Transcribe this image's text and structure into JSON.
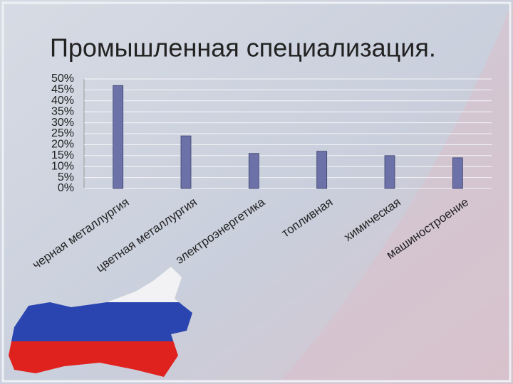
{
  "chart_data": {
    "type": "bar",
    "title": "Промышленная специализация.",
    "categories": [
      "черная металлургия",
      "цветная металлургия",
      "электроэнергетика",
      "топливная",
      "химическая",
      "машиностроение"
    ],
    "values": [
      47,
      24,
      16,
      17,
      15,
      14
    ],
    "color": "#6c72a8",
    "ylim": [
      0,
      50
    ],
    "yticks": [
      {
        "value": 0,
        "label": "0%"
      },
      {
        "value": 5,
        "label": "5%"
      },
      {
        "value": 10,
        "label": "10%"
      },
      {
        "value": 15,
        "label": "15%"
      },
      {
        "value": 20,
        "label": "20%"
      },
      {
        "value": 25,
        "label": "25%"
      },
      {
        "value": 30,
        "label": "30%"
      },
      {
        "value": 35,
        "label": "35%"
      },
      {
        "value": 40,
        "label": "40%"
      },
      {
        "value": 45,
        "label": "45%"
      },
      {
        "value": 50,
        "label": "50%"
      }
    ],
    "grid": true
  }
}
